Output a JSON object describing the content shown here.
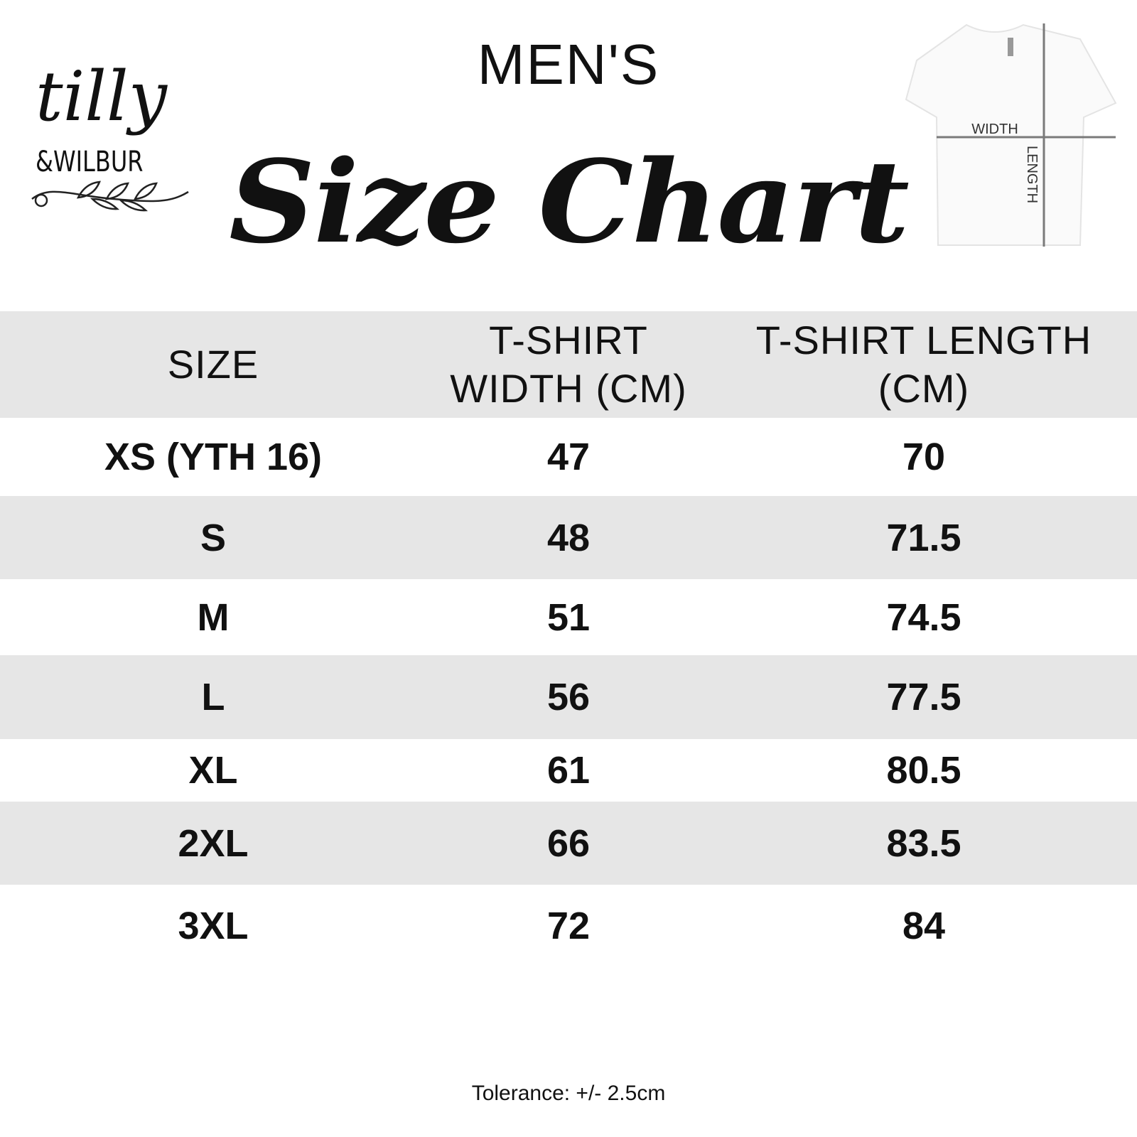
{
  "brand": {
    "name_line1": "tilly",
    "name_line2": "&WILBUR"
  },
  "heading": {
    "subtitle": "MEN'S",
    "title": "Size Chart"
  },
  "diagram": {
    "width_label": "WIDTH",
    "length_label": "LENGTH",
    "line_color": "#7a7a7a"
  },
  "table": {
    "headers": [
      "SIZE",
      "T-SHIRT WIDTH (CM)",
      "T-SHIRT LENGTH (CM)"
    ],
    "rows": [
      [
        "XS (YTH 16)",
        "47",
        "70"
      ],
      [
        "S",
        "48",
        "71.5"
      ],
      [
        "M",
        "51",
        "74.5"
      ],
      [
        "L",
        "56",
        "77.5"
      ],
      [
        "XL",
        "61",
        "80.5"
      ],
      [
        "2XL",
        "66",
        "83.5"
      ],
      [
        "3XL",
        "72",
        "84"
      ]
    ],
    "stripe_color": "#e6e6e6"
  },
  "footer": {
    "tolerance": "Tolerance: +/- 2.5cm"
  }
}
